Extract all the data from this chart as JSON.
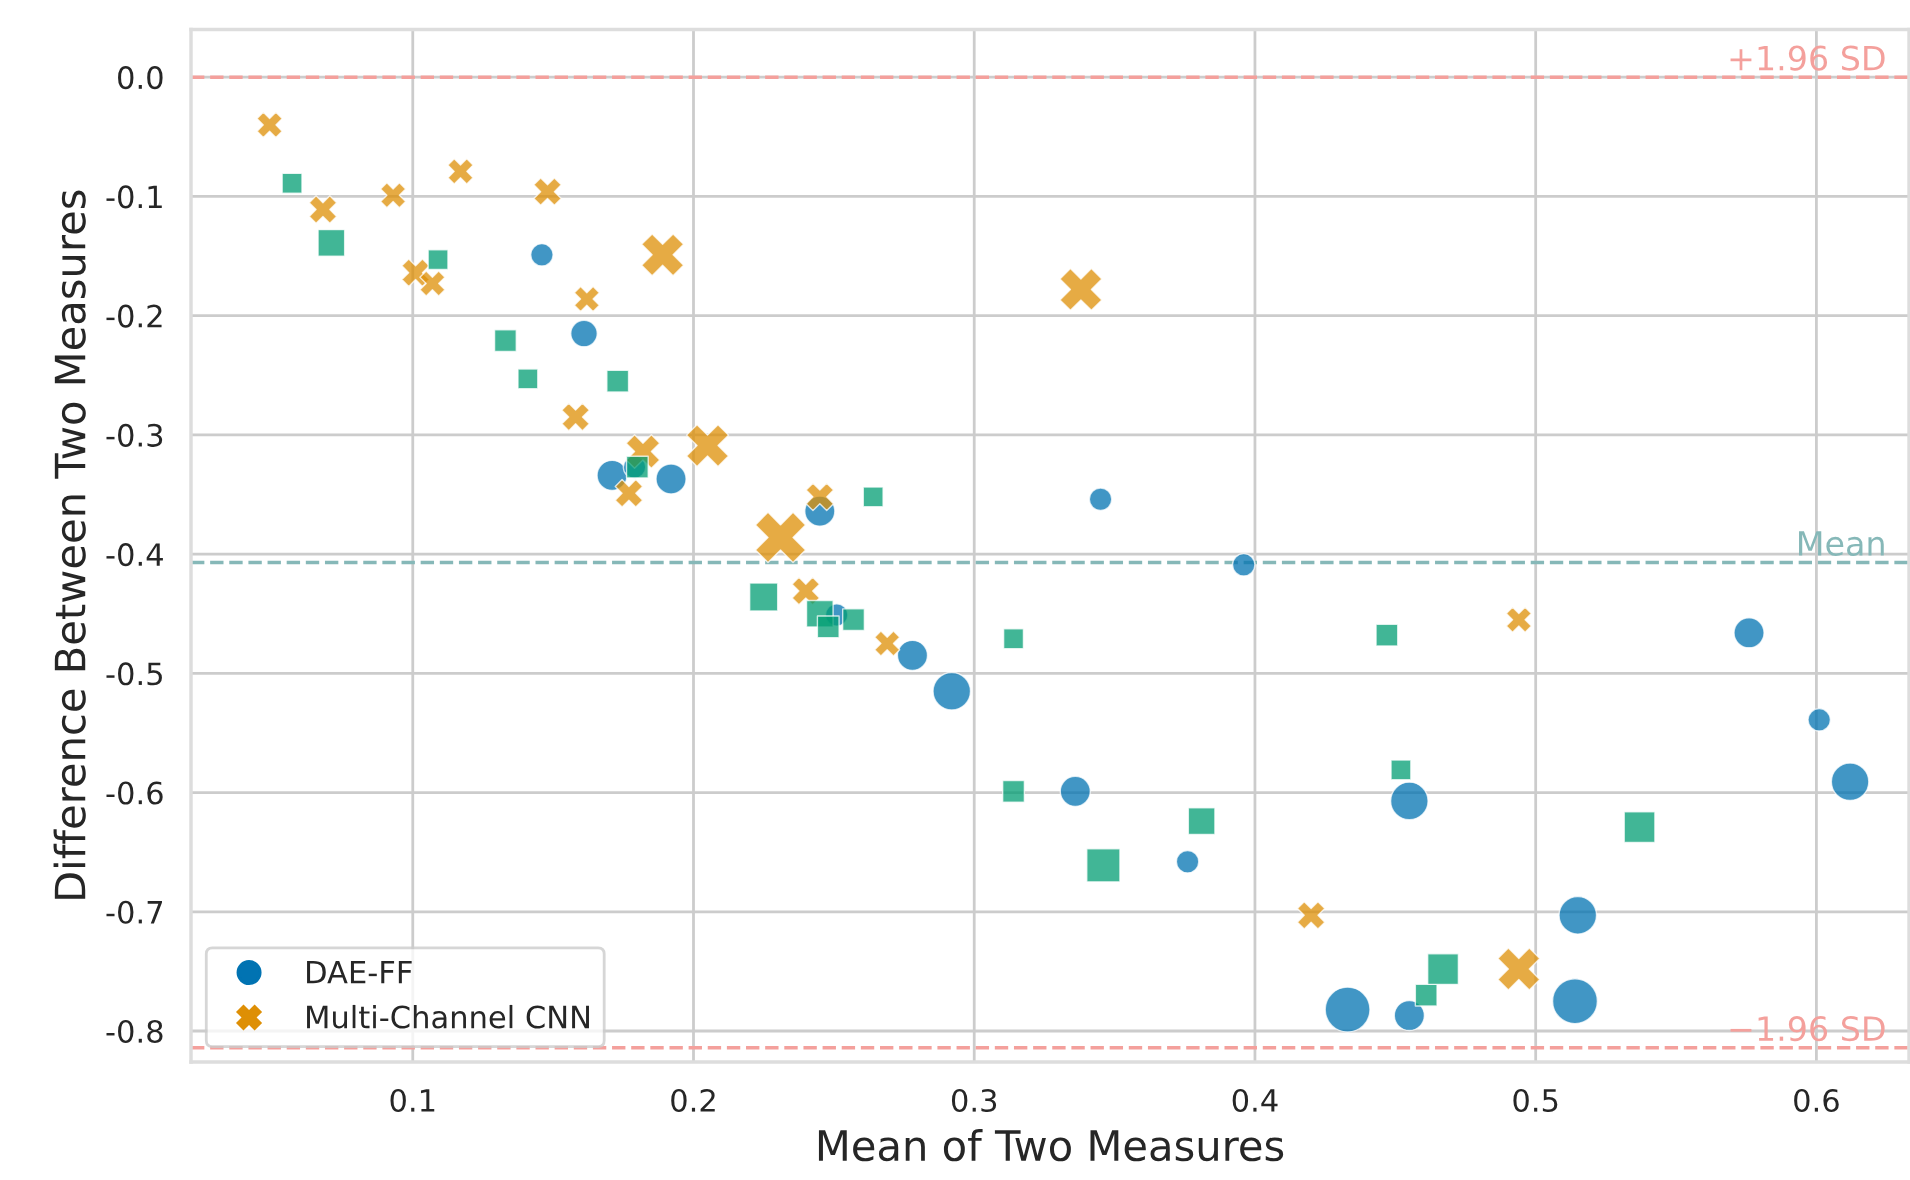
{
  "chart_data": {
    "type": "bubble",
    "xlabel": "Mean of Two Measures",
    "ylabel": "Difference Between Two Measures",
    "xlim": [
      0.021,
      0.633
    ],
    "ylim": [
      -0.826,
      0.04
    ],
    "xticks": [
      0.1,
      0.2,
      0.3,
      0.4,
      0.5,
      0.6
    ],
    "yticks": [
      {
        "value": 0,
        "label": "0.0"
      },
      -0.1,
      -0.2,
      -0.3,
      -0.4,
      -0.5,
      -0.6,
      -0.7,
      -0.8
    ],
    "grid": true,
    "legend": "bottom left",
    "series": [
      {
        "name": "DAE-FF",
        "color": "#0173b2",
        "marker": "circle",
        "x": [
          0.146,
          0.161,
          0.171,
          0.179,
          0.192,
          0.245,
          0.251,
          0.278,
          0.292,
          0.336,
          0.345,
          0.376,
          0.396,
          0.455,
          0.455,
          0.433,
          0.515,
          0.514,
          0.576,
          0.601,
          0.612
        ],
        "values": [
          -0.149,
          -0.215,
          -0.334,
          -0.327,
          -0.337,
          -0.364,
          -0.451,
          -0.485,
          -0.515,
          -0.599,
          -0.354,
          -0.658,
          -0.409,
          -0.607,
          -0.787,
          -0.782,
          -0.703,
          -0.775,
          -0.466,
          -0.539,
          -0.591
        ],
        "sizes": [
          0.25,
          0.35,
          0.45,
          0.25,
          0.45,
          0.45,
          0.25,
          0.45,
          0.7,
          0.45,
          0.25,
          0.25,
          0.25,
          0.7,
          0.45,
          1,
          0.7,
          1,
          0.45,
          0.25,
          0.7
        ]
      },
      {
        "name": "Multi-Channel CNN",
        "color": "#de8f05",
        "marker": "cross",
        "x": [
          0.049,
          0.068,
          0.093,
          0.117,
          0.101,
          0.107,
          0.148,
          0.162,
          0.189,
          0.158,
          0.182,
          0.177,
          0.205,
          0.231,
          0.245,
          0.24,
          0.269,
          0.338,
          0.42,
          0.494,
          0.494
        ],
        "values": [
          -0.04,
          -0.111,
          -0.099,
          -0.079,
          -0.164,
          -0.173,
          -0.096,
          -0.186,
          -0.149,
          -0.285,
          -0.314,
          -0.349,
          -0.309,
          -0.386,
          -0.352,
          -0.431,
          -0.475,
          -0.178,
          -0.703,
          -0.455,
          -0.748
        ],
        "sizes": [
          0.25,
          0.3,
          0.25,
          0.25,
          0.3,
          0.25,
          0.3,
          0.25,
          0.7,
          0.3,
          0.45,
          0.3,
          0.7,
          1,
          0.3,
          0.3,
          0.25,
          0.7,
          0.3,
          0.25,
          0.7
        ]
      },
      {
        "color": "#029e73",
        "marker": "square",
        "x": [
          0.057,
          0.071,
          0.109,
          0.133,
          0.141,
          0.173,
          0.18,
          0.264,
          0.225,
          0.245,
          0.248,
          0.257,
          0.314,
          0.314,
          0.346,
          0.381,
          0.447,
          0.452,
          0.461,
          0.467,
          0.537
        ],
        "values": [
          -0.089,
          -0.139,
          -0.153,
          -0.221,
          -0.253,
          -0.255,
          -0.327,
          -0.352,
          -0.436,
          -0.45,
          -0.461,
          -0.455,
          -0.471,
          -0.599,
          -0.661,
          -0.624,
          -0.468,
          -0.581,
          -0.77,
          -0.748,
          -0.629
        ],
        "sizes": [
          0.25,
          0.45,
          0.25,
          0.3,
          0.25,
          0.3,
          0.3,
          0.25,
          0.5,
          0.45,
          0.3,
          0.3,
          0.25,
          0.3,
          0.7,
          0.45,
          0.3,
          0.25,
          0.3,
          0.6,
          0.6
        ]
      }
    ],
    "ref_lines": [
      {
        "axis": "y",
        "value": 0,
        "label": "+1.96 SD",
        "color": "#f4a09c",
        "line_style": "dashed"
      },
      {
        "axis": "y",
        "value": -0.407,
        "label": "Mean",
        "color": "#86b8b8",
        "line_style": "dashed"
      },
      {
        "axis": "y",
        "value": -0.814,
        "label": "−1.96 SD",
        "color": "#f4a09c",
        "line_style": "dashed"
      }
    ]
  }
}
